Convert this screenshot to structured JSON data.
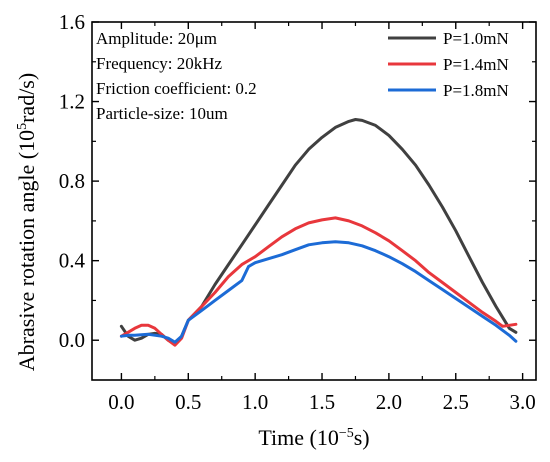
{
  "chart_data": {
    "type": "line",
    "xlabel": {
      "pre": "Time (10",
      "sup": "−5",
      "post": "s)"
    },
    "ylabel": {
      "pre": "Abrasive rotation angle (10",
      "sup": "5",
      "post": "rad/s)"
    },
    "xlim": [
      -0.22,
      3.1
    ],
    "ylim": [
      -0.2,
      1.6
    ],
    "xticks": [
      0.0,
      0.5,
      1.0,
      1.5,
      2.0,
      2.5,
      3.0
    ],
    "xtick_labels": [
      "0.0",
      "0.5",
      "1.0",
      "1.5",
      "2.0",
      "2.5",
      "3.0"
    ],
    "yticks": [
      0.0,
      0.4,
      0.8,
      1.2,
      1.6
    ],
    "ytick_labels": [
      "0.0",
      "0.4",
      "0.8",
      "1.2",
      "1.6"
    ],
    "grid": false,
    "legend_position": "top-right",
    "annotations": [
      "Amplitude: 20μm",
      "Frequency: 20kHz",
      "Friction coefficient: 0.2",
      "Particle-size: 10um"
    ],
    "series": [
      {
        "name": "P=1.0mN",
        "color": "#404040",
        "points": [
          [
            0.0,
            0.07
          ],
          [
            0.05,
            0.02
          ],
          [
            0.1,
            0.0
          ],
          [
            0.15,
            0.01
          ],
          [
            0.2,
            0.03
          ],
          [
            0.25,
            0.035
          ],
          [
            0.3,
            0.03
          ],
          [
            0.35,
            0.0
          ],
          [
            0.4,
            -0.02
          ],
          [
            0.45,
            0.02
          ],
          [
            0.5,
            0.1
          ],
          [
            0.6,
            0.17
          ],
          [
            0.7,
            0.28
          ],
          [
            0.8,
            0.38
          ],
          [
            0.9,
            0.48
          ],
          [
            1.0,
            0.58
          ],
          [
            1.1,
            0.68
          ],
          [
            1.2,
            0.78
          ],
          [
            1.3,
            0.88
          ],
          [
            1.4,
            0.96
          ],
          [
            1.5,
            1.02
          ],
          [
            1.6,
            1.07
          ],
          [
            1.7,
            1.1
          ],
          [
            1.75,
            1.11
          ],
          [
            1.8,
            1.105
          ],
          [
            1.9,
            1.08
          ],
          [
            2.0,
            1.03
          ],
          [
            2.1,
            0.96
          ],
          [
            2.2,
            0.88
          ],
          [
            2.3,
            0.78
          ],
          [
            2.4,
            0.67
          ],
          [
            2.5,
            0.55
          ],
          [
            2.6,
            0.42
          ],
          [
            2.7,
            0.29
          ],
          [
            2.8,
            0.17
          ],
          [
            2.9,
            0.06
          ],
          [
            2.95,
            0.04
          ]
        ]
      },
      {
        "name": "P=1.4mN",
        "color": "#e8373c",
        "points": [
          [
            0.0,
            0.02
          ],
          [
            0.05,
            0.04
          ],
          [
            0.1,
            0.06
          ],
          [
            0.15,
            0.075
          ],
          [
            0.2,
            0.075
          ],
          [
            0.25,
            0.06
          ],
          [
            0.3,
            0.03
          ],
          [
            0.35,
            0.0
          ],
          [
            0.4,
            -0.025
          ],
          [
            0.45,
            0.01
          ],
          [
            0.5,
            0.1
          ],
          [
            0.6,
            0.17
          ],
          [
            0.7,
            0.24
          ],
          [
            0.8,
            0.32
          ],
          [
            0.9,
            0.38
          ],
          [
            1.0,
            0.42
          ],
          [
            1.1,
            0.47
          ],
          [
            1.2,
            0.52
          ],
          [
            1.3,
            0.56
          ],
          [
            1.4,
            0.59
          ],
          [
            1.5,
            0.605
          ],
          [
            1.6,
            0.615
          ],
          [
            1.7,
            0.6
          ],
          [
            1.8,
            0.575
          ],
          [
            1.9,
            0.54
          ],
          [
            2.0,
            0.5
          ],
          [
            2.1,
            0.45
          ],
          [
            2.2,
            0.4
          ],
          [
            2.3,
            0.34
          ],
          [
            2.4,
            0.29
          ],
          [
            2.5,
            0.24
          ],
          [
            2.6,
            0.19
          ],
          [
            2.7,
            0.14
          ],
          [
            2.8,
            0.095
          ],
          [
            2.85,
            0.07
          ],
          [
            2.9,
            0.075
          ],
          [
            2.95,
            0.08
          ]
        ]
      },
      {
        "name": "P=1.8mN",
        "color": "#1c6bd6",
        "points": [
          [
            0.0,
            0.02
          ],
          [
            0.05,
            0.025
          ],
          [
            0.1,
            0.025
          ],
          [
            0.2,
            0.03
          ],
          [
            0.3,
            0.02
          ],
          [
            0.35,
            0.01
          ],
          [
            0.4,
            -0.01
          ],
          [
            0.45,
            0.02
          ],
          [
            0.5,
            0.1
          ],
          [
            0.6,
            0.15
          ],
          [
            0.7,
            0.2
          ],
          [
            0.8,
            0.25
          ],
          [
            0.9,
            0.3
          ],
          [
            0.95,
            0.37
          ],
          [
            1.0,
            0.39
          ],
          [
            1.1,
            0.41
          ],
          [
            1.2,
            0.43
          ],
          [
            1.3,
            0.455
          ],
          [
            1.4,
            0.48
          ],
          [
            1.5,
            0.49
          ],
          [
            1.6,
            0.495
          ],
          [
            1.7,
            0.49
          ],
          [
            1.8,
            0.475
          ],
          [
            1.9,
            0.45
          ],
          [
            2.0,
            0.42
          ],
          [
            2.1,
            0.385
          ],
          [
            2.2,
            0.345
          ],
          [
            2.3,
            0.3
          ],
          [
            2.4,
            0.255
          ],
          [
            2.5,
            0.21
          ],
          [
            2.6,
            0.165
          ],
          [
            2.7,
            0.12
          ],
          [
            2.8,
            0.075
          ],
          [
            2.9,
            0.025
          ],
          [
            2.95,
            -0.005
          ]
        ]
      }
    ]
  }
}
